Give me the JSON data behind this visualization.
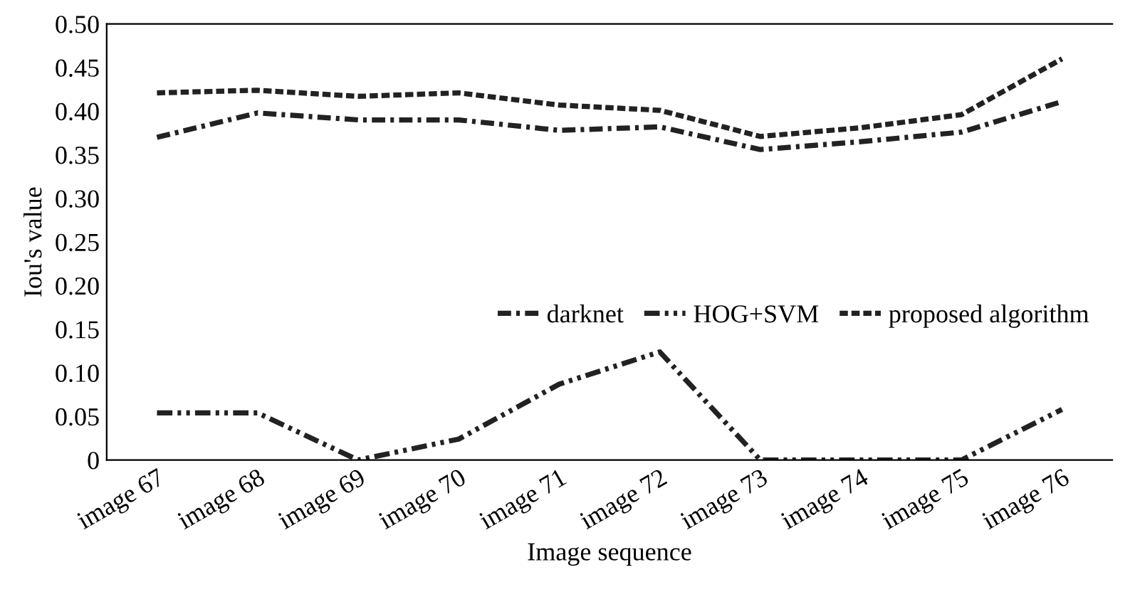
{
  "chart_data": {
    "type": "line",
    "xlabel": "Image sequence",
    "ylabel": "Iou's value",
    "categories": [
      "image 67",
      "image 68",
      "image 69",
      "image 70",
      "image 71",
      "image 72",
      "image 73",
      "image 74",
      "image 75",
      "image 76"
    ],
    "series": [
      {
        "name": "darknet",
        "color": "#222222",
        "line_style": "dashdot",
        "values": [
          0.37,
          0.398,
          0.39,
          0.39,
          0.378,
          0.382,
          0.356,
          0.365,
          0.376,
          0.411
        ]
      },
      {
        "name": "HOG+SVM",
        "color": "#222222",
        "line_style": "dashdotdot",
        "values": [
          0.054,
          0.054,
          0.0,
          0.024,
          0.087,
          0.124,
          0.0,
          0.0,
          0.0,
          0.058
        ]
      },
      {
        "name": "proposed algorithm",
        "color": "#222222",
        "line_style": "dashed",
        "values": [
          0.421,
          0.424,
          0.417,
          0.421,
          0.407,
          0.401,
          0.371,
          0.381,
          0.396,
          0.46
        ]
      }
    ],
    "ylim": [
      0,
      0.5
    ],
    "yticks": [
      {
        "value": 0,
        "label": "0"
      },
      {
        "value": 0.05,
        "label": "0.05"
      },
      {
        "value": 0.1,
        "label": "0.10"
      },
      {
        "value": 0.15,
        "label": "0.15"
      },
      {
        "value": 0.2,
        "label": "0.20"
      },
      {
        "value": 0.25,
        "label": "0.25"
      },
      {
        "value": 0.3,
        "label": "0.30"
      },
      {
        "value": 0.35,
        "label": "0.35"
      },
      {
        "value": 0.4,
        "label": "0.40"
      },
      {
        "value": 0.45,
        "label": "0.45"
      },
      {
        "value": 0.5,
        "label": "0.50"
      }
    ],
    "grid": false,
    "legend": "right",
    "marker": "none"
  }
}
